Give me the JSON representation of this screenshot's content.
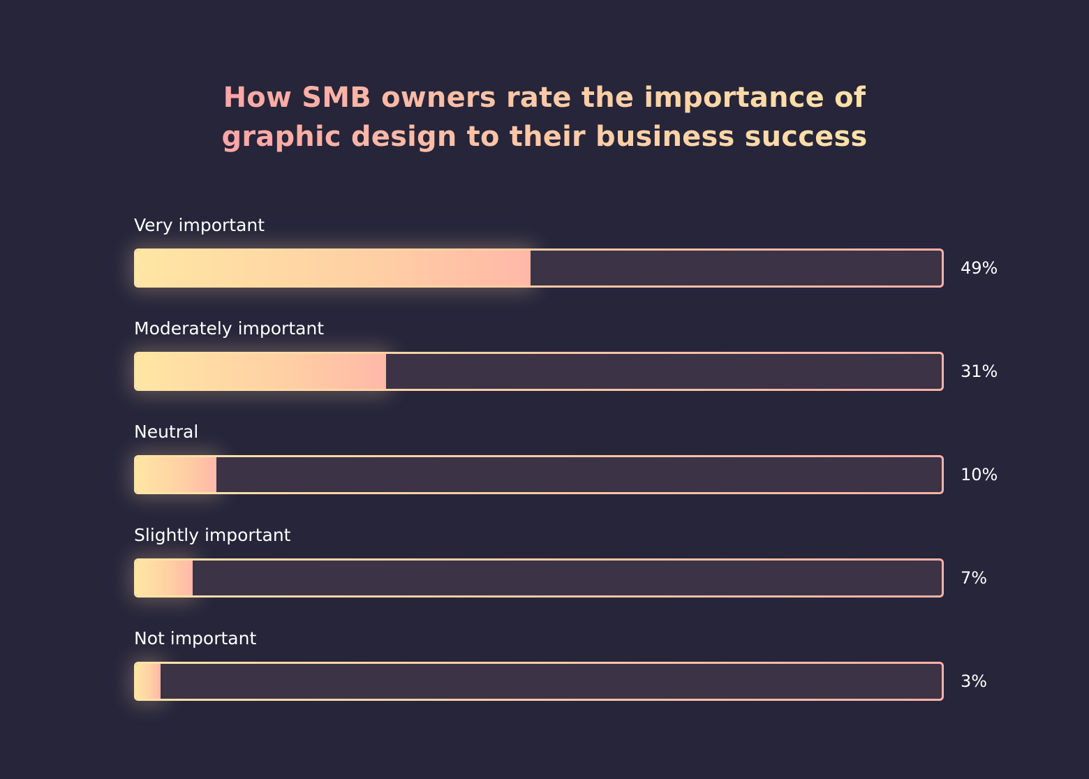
{
  "chart_data": {
    "type": "bar",
    "orientation": "horizontal",
    "title_lines": [
      "How SMB owners rate the importance of",
      "graphic design to their business success"
    ],
    "categories": [
      "Very important",
      "Moderately important",
      "Neutral",
      "Slightly important",
      "Not important"
    ],
    "values": [
      49,
      31,
      10,
      7,
      3
    ],
    "value_labels": [
      "49%",
      "31%",
      "10%",
      "7%",
      "3%"
    ],
    "xlim": [
      0,
      100
    ],
    "grid": false,
    "legend": "none"
  },
  "colors": {
    "background": "#26253a",
    "track": "#3c3347",
    "fill_start": "#ffe6a4",
    "fill_end": "#ffb8a8",
    "title_start": "#ffa6a6",
    "title_end": "#ffe2a8",
    "label_text": "#ffffff"
  }
}
